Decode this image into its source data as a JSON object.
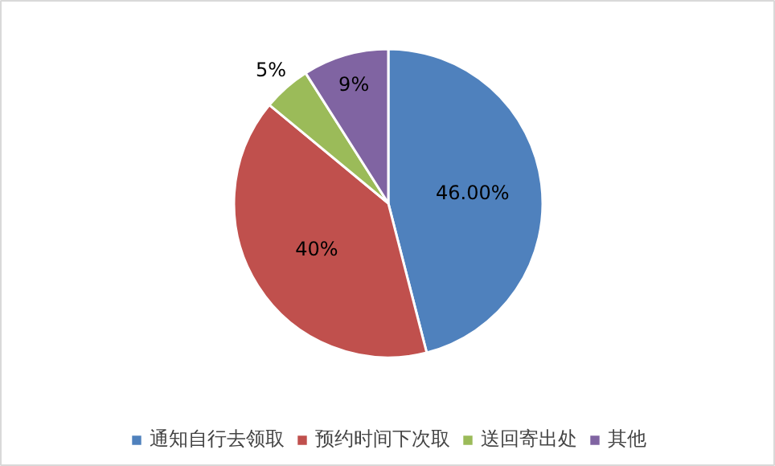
{
  "chart_data": {
    "type": "pie",
    "categories": [
      "通知自行去领取",
      "预约时间下次取",
      "送回寄出处",
      "其他"
    ],
    "values": [
      46,
      40,
      5,
      9
    ],
    "colors": [
      "#4f81bd",
      "#c0504d",
      "#9bbb59",
      "#8064a2"
    ],
    "value_labels": [
      "46.00%",
      "40%",
      "5%",
      "9%"
    ],
    "legend": "bottom"
  }
}
